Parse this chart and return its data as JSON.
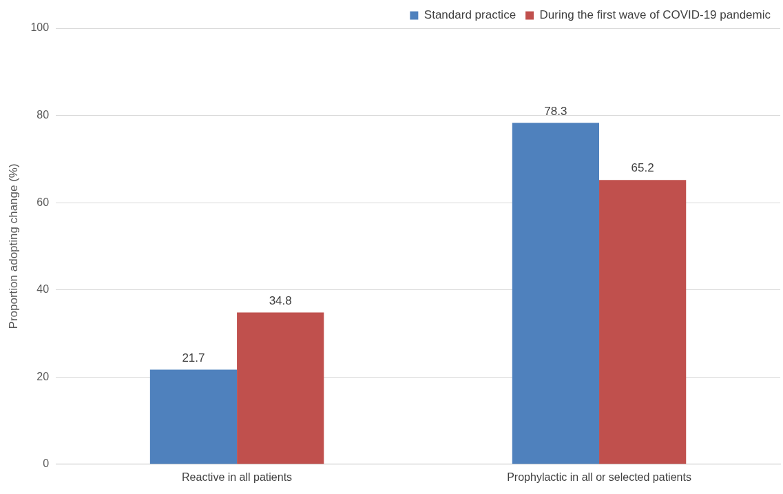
{
  "chart_data": {
    "type": "bar",
    "ylabel": "Proportion adopting change (%)",
    "categories": [
      "Reactive in all patients",
      "Prophylactic in all or selected patients"
    ],
    "series": [
      {
        "name": "Standard practice",
        "color": "#4f81bd",
        "values": [
          21.7,
          78.3
        ]
      },
      {
        "name": "During the first wave of COVID-19 pandemic",
        "color": "#c0504d",
        "values": [
          34.8,
          65.2
        ]
      }
    ],
    "ylim": [
      0,
      100
    ],
    "yticks": [
      0,
      20,
      40,
      60,
      80,
      100
    ],
    "grid": "y",
    "legend": "top right",
    "data_labels": true
  }
}
